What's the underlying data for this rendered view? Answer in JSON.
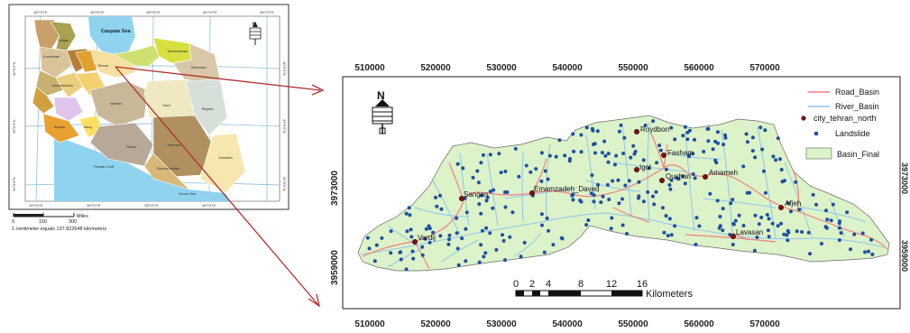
{
  "overview_map": {
    "top_ticks": [
      "45°0'0\"E",
      "50°0'0\"E",
      "55°0'0\"E",
      "60°0'0\"E",
      "65°0'0\"E"
    ],
    "bottom_ticks": [
      "45°0'0\"E",
      "50°0'0\"E",
      "55°0'0\"E",
      "60°0'0\"E"
    ],
    "left_ticks": [
      "40°0'0\"N",
      "35°0'0\"N",
      "30°0'0\"N"
    ],
    "right_ticks": [
      "40°0'0\"N",
      "35°0'0\"N",
      "30°0'0\"N"
    ],
    "sea_label": "Caspian Sea",
    "gulf_label": "Persian Gulf",
    "oman_label": "Oman Sea",
    "provinces": [
      "Ardabil",
      "Zanjan",
      "Qazvin",
      "Gilan",
      "Tehran",
      "Semnan",
      "Mazandaran",
      "Golestan",
      "Khorasan",
      "Mashhad",
      "Kordestan",
      "Hamadan",
      "Kermanshah",
      "Markazi",
      "Lorestan",
      "Isfahan",
      "Khuzestan",
      "Ahwaz",
      "Yasuj",
      "Fars",
      "Yazd",
      "Kerman",
      "Birjand",
      "Shiraz",
      "Bandar Abbas",
      "Zahedan"
    ],
    "scale_ticks": [
      "0",
      "150",
      "300"
    ],
    "scale_unit": "Miles",
    "scale_note": "1 centimeter equals 137.822648 kilometers",
    "north_label": "N"
  },
  "main_map": {
    "x_ticks": [
      "510000",
      "520000",
      "530000",
      "540000",
      "550000",
      "560000",
      "570000"
    ],
    "y_ticks": [
      "3973000",
      "3959000"
    ],
    "right_ticks": [
      "3973000",
      "3959000"
    ],
    "north_label": "N",
    "cities": [
      "Roydbon",
      "Fasham",
      "Igol",
      "Qushan",
      "Amameh",
      "Sangan",
      "Emamzadeh_Daved",
      "Afjeh",
      "Lavasan",
      "Vardij"
    ],
    "scalebar": {
      "ticks": [
        "0",
        "2",
        "4",
        "8",
        "12",
        "16"
      ],
      "unit": "Kilometers"
    },
    "legend": {
      "road": "Road_Basin",
      "river": "River_Basin",
      "city": "city_tehran_north",
      "landslide": "Landslide",
      "basin": "Basin_Final"
    }
  },
  "colors": {
    "basin_fill": "#dcf2c8",
    "road": "#f08080",
    "river": "#8ec6ee",
    "landslide": "#1f4fa0",
    "city": "#7a1010",
    "arrow": "#b03030",
    "sea": "#8fd3ef"
  }
}
